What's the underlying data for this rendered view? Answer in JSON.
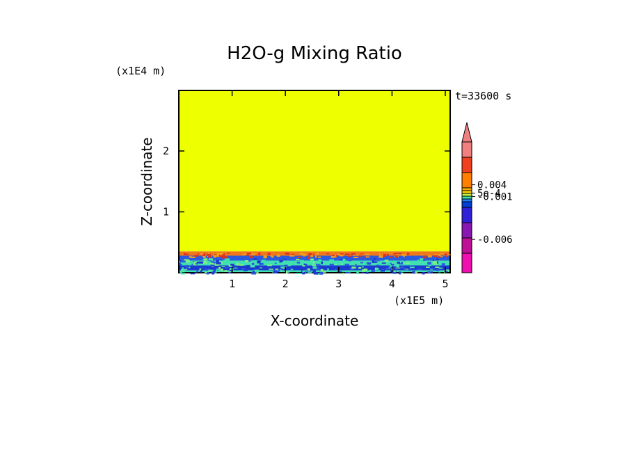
{
  "chart_data": {
    "type": "heatmap",
    "title": "H2O-g Mixing Ratio",
    "xlabel": "X-coordinate",
    "ylabel": "Z-coordinate",
    "x_unit": "(x1E5 m)",
    "y_unit": "(x1E4 m)",
    "time_label": "t=33600 s",
    "x_ticks": [
      "1",
      "2",
      "3",
      "4",
      "5"
    ],
    "y_ticks": [
      "1",
      "2"
    ],
    "xlim": [
      0,
      5.1
    ],
    "ylim": [
      0,
      3.0
    ],
    "field_layers": [
      {
        "z_from": 0.35,
        "z_to": 3.0,
        "color": "#eeff00"
      },
      {
        "z_from": 0.28,
        "z_to": 0.35,
        "color": "#f07818"
      },
      {
        "z_from": 0.2,
        "z_to": 0.28,
        "color": "#2a5ae0"
      },
      {
        "z_from": 0.12,
        "z_to": 0.2,
        "color": "#40e0b0"
      },
      {
        "z_from": 0.04,
        "z_to": 0.12,
        "color": "#1c3ad0"
      },
      {
        "z_from": 0.0,
        "z_to": 0.04,
        "color": "#40e0b0"
      }
    ],
    "colorbar": {
      "colors": [
        "#f010b0",
        "#c01098",
        "#8818b0",
        "#3020d8",
        "#0040d8",
        "#2080ff",
        "#40e0a0",
        "#c0f040",
        "#ffd000",
        "#ffb000",
        "#ff8000",
        "#f04020",
        "#f08080"
      ],
      "labels": [
        "0.004",
        "5e-4",
        "-0.001",
        "-0.006"
      ],
      "label_levels": [
        10.2,
        8.1,
        6.9,
        1.9
      ],
      "extend_max": true,
      "extend_color": "#f08080"
    }
  }
}
